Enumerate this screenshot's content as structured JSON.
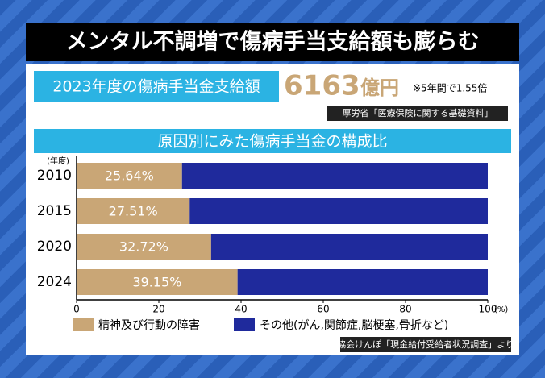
{
  "header": {
    "title": "メンタル不調増で傷病手当支給額も膨らむ",
    "amount_label": "2023年度の傷病手当金支給額",
    "amount_value": "6163",
    "amount_unit": "億円",
    "note": "※5年間で1.55倍",
    "source": "厚労省「医療保険に関する基礎資料」"
  },
  "chart_data": {
    "type": "stacked-barh",
    "title": "原因別にみた傷病手当金の構成比",
    "y_label": "(年度)",
    "x_unit": "(%)",
    "categories": [
      "2010",
      "2015",
      "2020",
      "2024"
    ],
    "series": [
      {
        "name": "精神及び行動の障害",
        "color": "#c9a676",
        "values": [
          25.64,
          27.51,
          32.72,
          39.15
        ],
        "value_labels": [
          "25.64%",
          "27.51%",
          "32.72%",
          "39.15%"
        ]
      },
      {
        "name": "その他(がん,関節症,脳梗塞,骨折など)",
        "color": "#1f2a9c",
        "values": [
          74.36,
          72.49,
          67.28,
          60.85
        ]
      }
    ],
    "xlim": [
      0,
      100
    ],
    "xticks": [
      0,
      20,
      40,
      60,
      80,
      100
    ],
    "source": "協会けんぽ「現金給付受給者状況調査」より"
  }
}
